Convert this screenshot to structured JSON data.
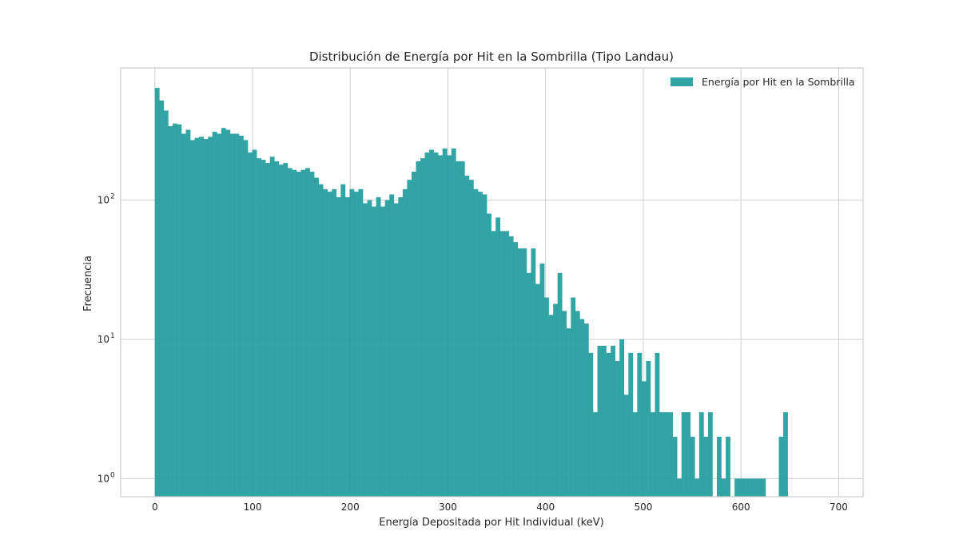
{
  "chart_data": {
    "type": "bar",
    "histogram": true,
    "title": "Distribución de Energía por Hit en la Sombrilla (Tipo Landau)",
    "xlabel": "Energía Depositada por Hit Individual (keV)",
    "ylabel": "Frecuencia",
    "xlim": [
      -35,
      725
    ],
    "ylim_log10": [
      -0.13,
      2.95
    ],
    "yscale": "log",
    "grid": true,
    "legend_position": "top-right",
    "colors": {
      "bar": "#229c9c",
      "grid": "#cccccc",
      "frame": "#cccccc"
    },
    "x_ticks": [
      {
        "value": 0,
        "label": "0"
      },
      {
        "value": 100,
        "label": "100"
      },
      {
        "value": 200,
        "label": "200"
      },
      {
        "value": 300,
        "label": "300"
      },
      {
        "value": 400,
        "label": "400"
      },
      {
        "value": 500,
        "label": "500"
      },
      {
        "value": 600,
        "label": "600"
      },
      {
        "value": 700,
        "label": "700"
      }
    ],
    "y_ticks": [
      {
        "value": 1,
        "base": "10",
        "exp": "0"
      },
      {
        "value": 10,
        "base": "10",
        "exp": "1"
      },
      {
        "value": 100,
        "base": "10",
        "exp": "2"
      }
    ],
    "bin_start": 0,
    "bin_width": 4.53,
    "series": [
      {
        "name": "Energía por Hit en la Sombrilla",
        "values": [
          640,
          520,
          440,
          340,
          355,
          350,
          300,
          320,
          270,
          280,
          285,
          275,
          285,
          310,
          300,
          330,
          320,
          300,
          300,
          290,
          270,
          220,
          230,
          200,
          195,
          185,
          205,
          190,
          180,
          185,
          170,
          165,
          160,
          165,
          170,
          160,
          145,
          130,
          120,
          115,
          120,
          105,
          130,
          105,
          120,
          115,
          120,
          95,
          100,
          90,
          105,
          90,
          100,
          110,
          95,
          105,
          120,
          140,
          160,
          190,
          200,
          220,
          230,
          220,
          210,
          235,
          210,
          235,
          190,
          190,
          150,
          140,
          120,
          115,
          110,
          80,
          60,
          75,
          60,
          60,
          55,
          50,
          45,
          45,
          30,
          45,
          25,
          35,
          20,
          15,
          18,
          30,
          16,
          12,
          20,
          16,
          14,
          13,
          8,
          3,
          9,
          9,
          8,
          9,
          7,
          10,
          4,
          8,
          3,
          8,
          5,
          7,
          3,
          8,
          3,
          3,
          3,
          2,
          1,
          3,
          3,
          2,
          1,
          3,
          2,
          3,
          0,
          2,
          1,
          2,
          0,
          1,
          1,
          1,
          1,
          1,
          1,
          1,
          0,
          0,
          0,
          2,
          3
        ]
      }
    ]
  }
}
